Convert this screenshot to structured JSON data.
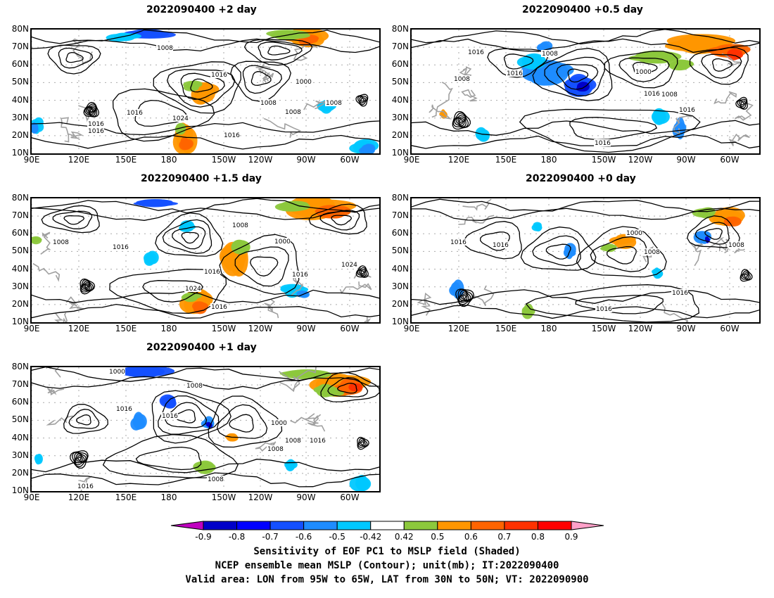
{
  "panels": [
    {
      "title": "2022090400 +2 day",
      "contour_labels": [
        "1008",
        "1016",
        "1016",
        "1016",
        "1008",
        "1024",
        "1016",
        "1008",
        "1000",
        "1008",
        "1016"
      ]
    },
    {
      "title": "2022090400 +0.5 day",
      "contour_labels": [
        "1016",
        "1008",
        "1008",
        "1016",
        "1000",
        "1016",
        "1008",
        "1016",
        "1016"
      ]
    },
    {
      "title": "2022090400 +1.5 day",
      "contour_labels": [
        "1008",
        "1016",
        "1008",
        "1016",
        "1000",
        "1024",
        "1016",
        "1016",
        "1024"
      ]
    },
    {
      "title": "2022090400 +0 day",
      "contour_labels": [
        "1016",
        "1016",
        "1000",
        "1008",
        "1008",
        "1016",
        "1016"
      ]
    },
    {
      "title": "2022090400 +1 day",
      "contour_labels": [
        "1000",
        "1008",
        "1016",
        "1016",
        "1000",
        "1008",
        "1008",
        "1016",
        "1016",
        "1008"
      ]
    }
  ],
  "axes": {
    "lat_ticks": [
      "80N",
      "70N",
      "60N",
      "50N",
      "40N",
      "30N",
      "20N",
      "10N"
    ],
    "lon_ticks": [
      "90E",
      "120E",
      "150E",
      "180",
      "150W",
      "120W",
      "90W",
      "60W"
    ]
  },
  "colorbar": {
    "labels": [
      "-0.9",
      "-0.8",
      "-0.7",
      "-0.6",
      "-0.5",
      "-0.42",
      "0.42",
      "0.5",
      "0.6",
      "0.7",
      "0.8",
      "0.9"
    ],
    "colors": [
      "#c000c0",
      "#0000c8",
      "#0000ff",
      "#1450ff",
      "#1e8cff",
      "#00c8ff",
      "#ffffff",
      "#8cc83c",
      "#ff9600",
      "#ff6400",
      "#ff3200",
      "#ff0000",
      "#ffa0c8"
    ]
  },
  "caption": {
    "line1": "Sensitivity of EOF PC1 to MSLP field (Shaded)",
    "line2": "NCEP ensemble mean MSLP (Contour); unit(mb); IT:2022090400",
    "line3": "Valid area: LON from 95W to 65W, LAT from 30N to 50N; VT: 2022090900"
  }
}
